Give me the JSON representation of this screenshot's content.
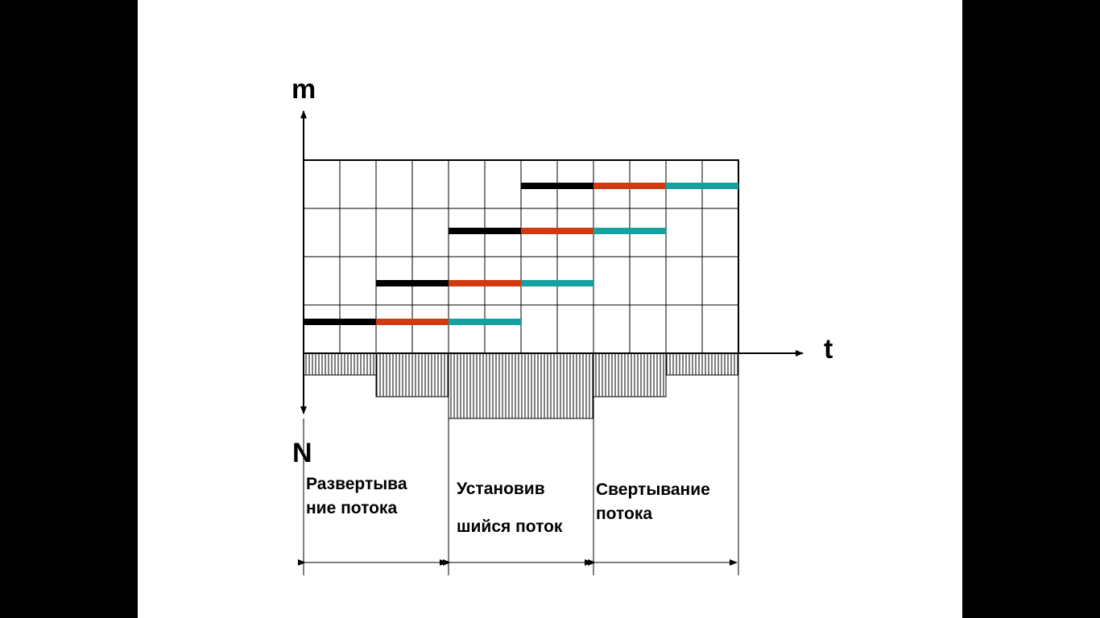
{
  "axes": {
    "y_label": "m",
    "x_label": "t",
    "down_label": "N"
  },
  "grid": {
    "columns": 12,
    "rows": 4
  },
  "bars": [
    {
      "row": 1,
      "segments": [
        {
          "start": 0,
          "end": 2,
          "color": "#000000"
        },
        {
          "start": 2,
          "end": 4,
          "color": "#d03a10"
        },
        {
          "start": 4,
          "end": 6,
          "color": "#16a0a0"
        }
      ]
    },
    {
      "row": 2,
      "segments": [
        {
          "start": 2,
          "end": 4,
          "color": "#000000"
        },
        {
          "start": 4,
          "end": 6,
          "color": "#d03a10"
        },
        {
          "start": 6,
          "end": 8,
          "color": "#16a0a0"
        }
      ]
    },
    {
      "row": 3,
      "segments": [
        {
          "start": 4,
          "end": 6,
          "color": "#000000"
        },
        {
          "start": 6,
          "end": 8,
          "color": "#d03a10"
        },
        {
          "start": 8,
          "end": 10,
          "color": "#16a0a0"
        }
      ]
    },
    {
      "row": 4,
      "segments": [
        {
          "start": 6,
          "end": 8,
          "color": "#000000"
        },
        {
          "start": 8,
          "end": 10,
          "color": "#d03a10"
        },
        {
          "start": 10,
          "end": 12,
          "color": "#16a0a0"
        }
      ]
    }
  ],
  "workers": [
    {
      "start": 0,
      "end": 2,
      "value": 1
    },
    {
      "start": 2,
      "end": 4,
      "value": 2
    },
    {
      "start": 4,
      "end": 8,
      "value": 3
    },
    {
      "start": 8,
      "end": 10,
      "value": 2
    },
    {
      "start": 10,
      "end": 12,
      "value": 1
    }
  ],
  "phases": [
    {
      "start": 0,
      "end": 4,
      "lines": [
        "Развертыва",
        "ние потока"
      ]
    },
    {
      "start": 4,
      "end": 8,
      "lines": [
        "Установив",
        "шийся поток"
      ]
    },
    {
      "start": 8,
      "end": 12,
      "lines": [
        "Свертывание",
        "потока"
      ]
    }
  ]
}
